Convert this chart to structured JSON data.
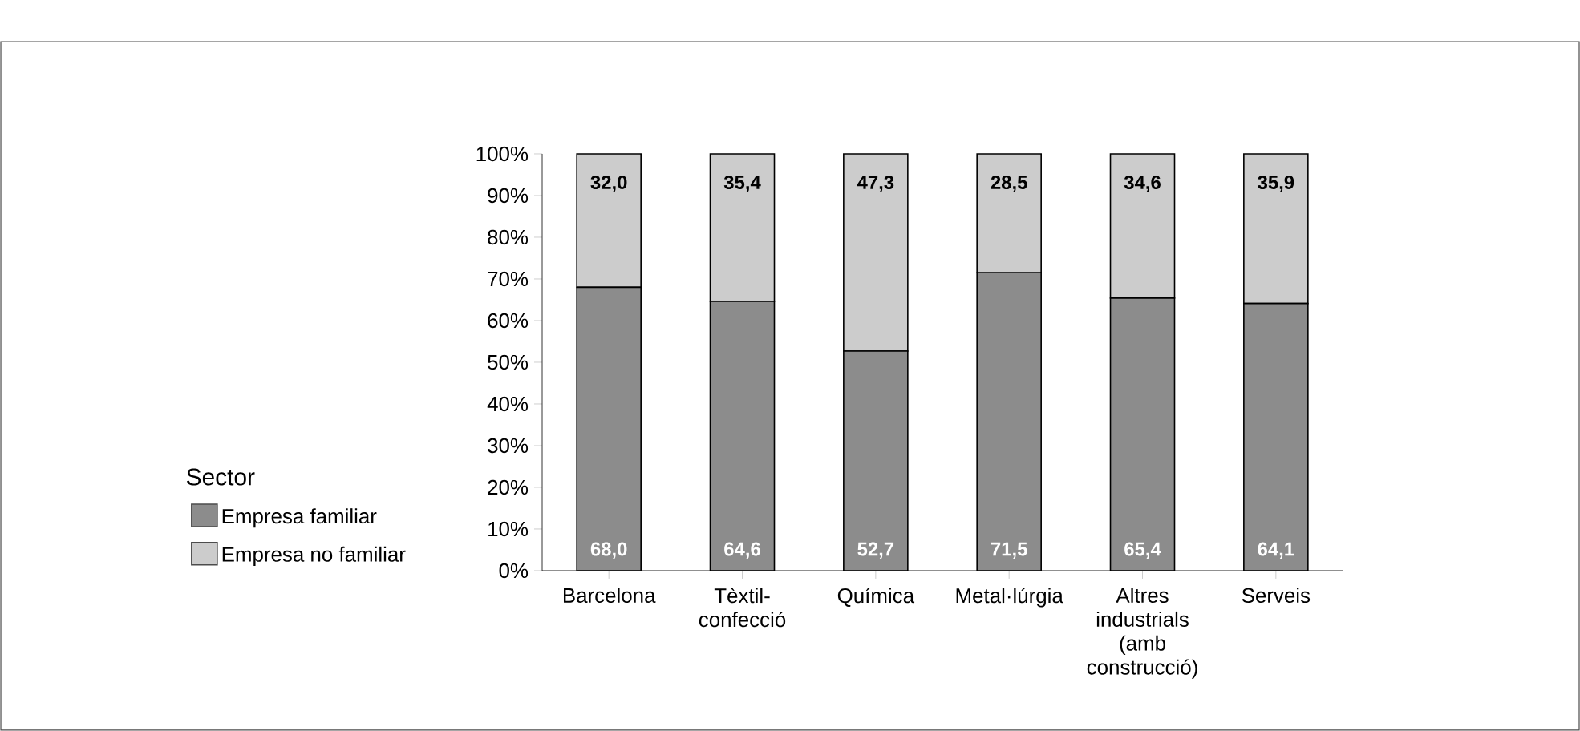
{
  "chart_data": {
    "type": "bar",
    "stacked": true,
    "categories": [
      "Barcelona",
      "Tèxtil-confecció",
      "Química",
      "Metal·lúrgia",
      "Altres industrials (amb construcció)",
      "Serveis"
    ],
    "series": [
      {
        "name": "Empresa familiar",
        "color": "#8c8c8c",
        "values": [
          68.0,
          64.6,
          52.7,
          71.5,
          65.4,
          64.1
        ],
        "value_labels": [
          "68,0",
          "64,6",
          "52,7",
          "71,5",
          "65,4",
          "64,1"
        ]
      },
      {
        "name": "Empresa no familiar",
        "color": "#cccccc",
        "values": [
          32.0,
          35.4,
          47.3,
          28.5,
          34.6,
          35.9
        ],
        "value_labels": [
          "32,0",
          "35,4",
          "47,3",
          "28,5",
          "34,6",
          "35,9"
        ]
      }
    ],
    "ylim": [
      0,
      100
    ],
    "yticks": [
      {
        "value": 0,
        "label": "0%"
      },
      {
        "value": 10,
        "label": "10%"
      },
      {
        "value": 20,
        "label": "20%"
      },
      {
        "value": 30,
        "label": "30%"
      },
      {
        "value": 40,
        "label": "40%"
      },
      {
        "value": 50,
        "label": "50%"
      },
      {
        "value": 60,
        "label": "60%"
      },
      {
        "value": 70,
        "label": "70%"
      },
      {
        "value": 80,
        "label": "80%"
      },
      {
        "value": 90,
        "label": "90%"
      },
      {
        "value": 100,
        "label": "100%"
      }
    ],
    "legend_title": "Sector",
    "legend": "bottom left",
    "grid": false
  }
}
